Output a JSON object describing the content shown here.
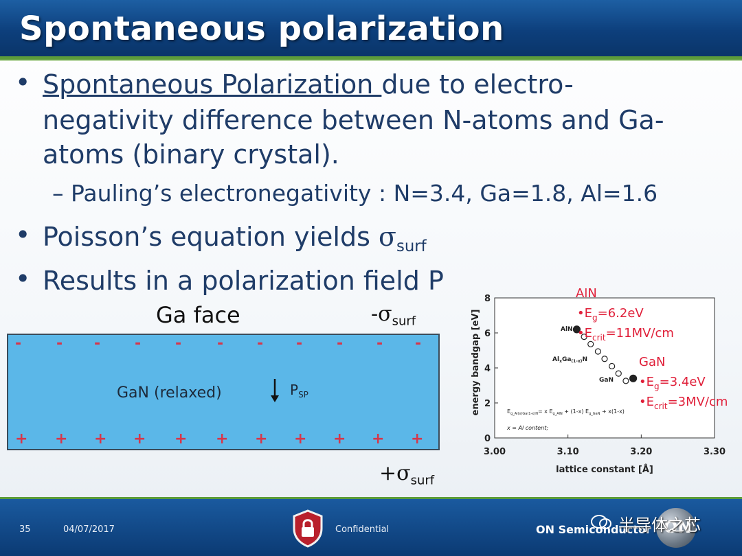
{
  "title": "Spontaneous polarization",
  "bullets": {
    "b1_underlined": "Spontaneous Polarization ",
    "b1_rest": "due to electro-",
    "b1_line2": "negativity difference between N-atoms and Ga-",
    "b1_line3": "atoms (binary crystal).",
    "sub1": "– Pauling’s electronegativity : N=3.4, Ga=1.8, Al=1.6",
    "b2_text": "Poisson’s equation yields ",
    "b2_sigma": "σ",
    "b2_sub": "surf",
    "b3": "Results in a polarization field P"
  },
  "diagram": {
    "face_label": "Ga face",
    "top_charge_sign": "-σ",
    "top_charge_sub": "surf",
    "bottom_charge_sign": "+σ",
    "bottom_charge_sub": "surf",
    "minus_symbol": "-",
    "plus_symbol": "+",
    "layer_label": "GaN (relaxed)",
    "p_label": "P",
    "p_sub": "SP"
  },
  "chart_data": {
    "type": "line",
    "xlabel": "lattice constant [Å]",
    "ylabel": "energy bandgap [eV]",
    "xlim": [
      3.0,
      3.3
    ],
    "ylim": [
      0,
      8
    ],
    "xticks": [
      "3.00",
      "3.10",
      "3.20",
      "3.30"
    ],
    "yticks": [
      "0",
      "2",
      "4",
      "6",
      "8"
    ],
    "series": [
      {
        "x": [
          3.112,
          3.122,
          3.131,
          3.141,
          3.15,
          3.16,
          3.169,
          3.179,
          3.189
        ],
        "values": [
          6.2,
          5.78,
          5.36,
          4.94,
          4.52,
          4.1,
          3.68,
          3.26,
          3.4
        ]
      }
    ],
    "point_labels": {
      "aln": "AlN",
      "gan": "GaN",
      "alloy": "Al",
      "alloy_x": "x",
      "alloy_ga": "Ga",
      "alloy_1x": "(1-x)",
      "alloy_n": "N"
    },
    "formula": "E",
    "formula_sub1": "g_Al(x)Ga(1-x)N",
    "formula_mid": "= x E",
    "formula_sub2": "g_AlN",
    "formula_mid2": " + (1-x) E",
    "formula_sub3": "g_GaN",
    "formula_end": " + x(1-x)",
    "note": "x = Al content;",
    "annotations": {
      "aln_title": "AlN",
      "aln_eg": "•E",
      "aln_eg_sub": "g",
      "aln_eg_val": "=6.2eV",
      "aln_ec": "•E",
      "aln_ec_sub": "crit",
      "aln_ec_val": "=11MV/cm",
      "gan_title": "GaN",
      "gan_eg": "•E",
      "gan_eg_sub": "g",
      "gan_eg_val": "=3.4eV",
      "gan_ec": "•E",
      "gan_ec_sub": "crit",
      "gan_ec_val": "=3MV/cm"
    },
    "colors": {
      "annotation": "#e0203a",
      "marker": "#222222"
    }
  },
  "footer": {
    "page_number": "35",
    "date": "04/07/2017",
    "confidential": "Confidential",
    "company": "ON Semiconductor",
    "logo_text": "ON",
    "watermark": "半导体之芯"
  }
}
